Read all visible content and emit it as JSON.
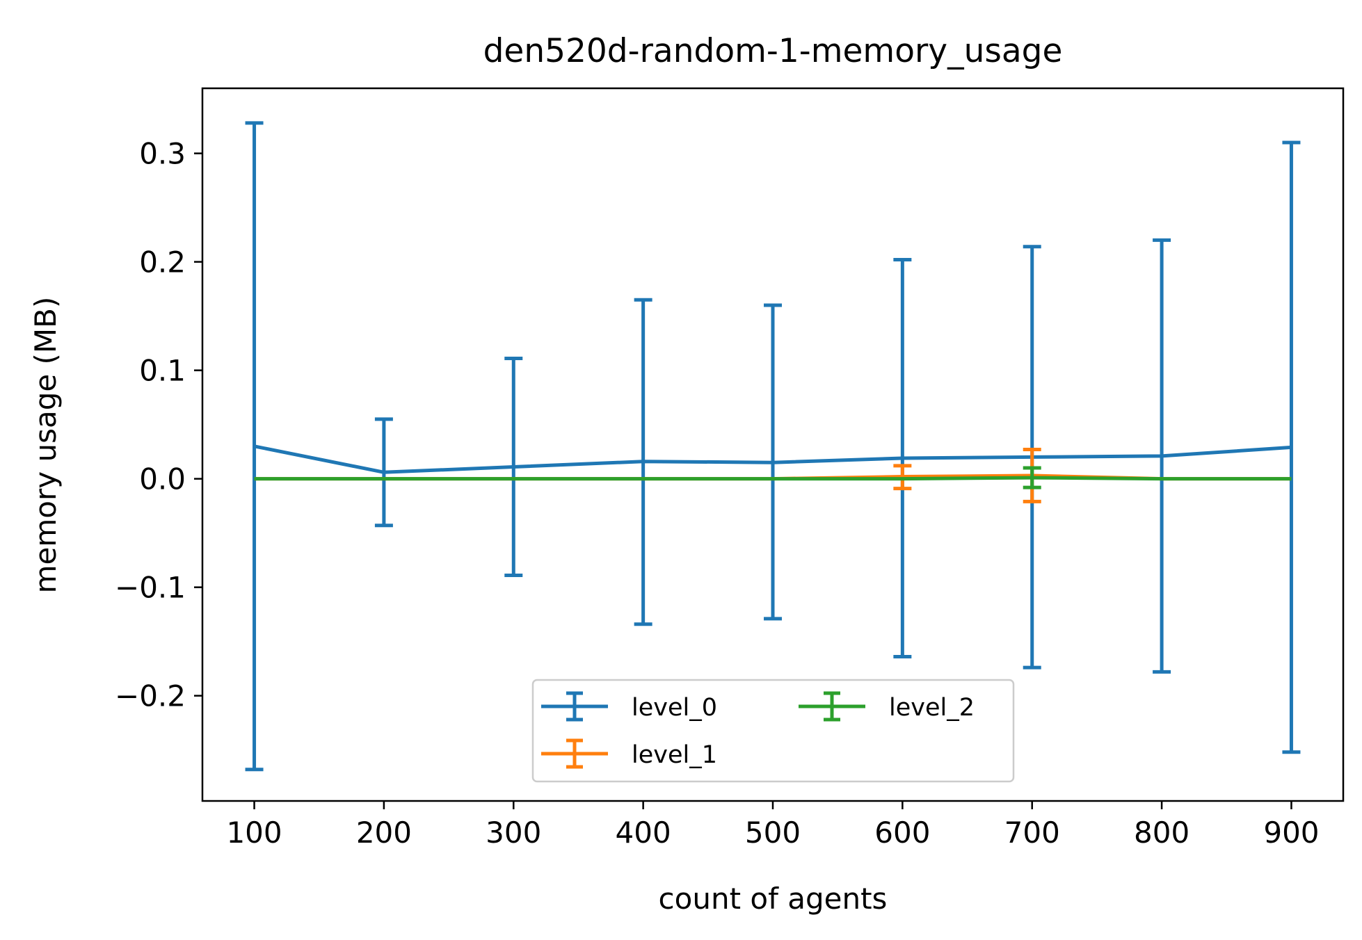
{
  "chart_data": {
    "type": "line",
    "title": "den520d-random-1-memory_usage",
    "xlabel": "count of agents",
    "ylabel": "memory usage (MB)",
    "xlim": [
      60,
      940
    ],
    "ylim": [
      -0.297,
      0.36
    ],
    "x": [
      100,
      200,
      300,
      400,
      500,
      600,
      700,
      800,
      900
    ],
    "x_ticks": [
      100,
      200,
      300,
      400,
      500,
      600,
      700,
      800,
      900
    ],
    "x_tick_labels": [
      "100",
      "200",
      "300",
      "400",
      "500",
      "600",
      "700",
      "800",
      "900"
    ],
    "y_ticks": [
      -0.2,
      -0.1,
      0.0,
      0.1,
      0.2,
      0.3
    ],
    "y_tick_labels": [
      "−0.2",
      "−0.1",
      "0.0",
      "0.1",
      "0.2",
      "0.3"
    ],
    "grid": false,
    "legend": {
      "placement": "lower center",
      "columns": 2
    },
    "series": [
      {
        "name": "level_0",
        "color": "#1f77b4",
        "values": [
          0.03,
          0.006,
          0.011,
          0.016,
          0.015,
          0.019,
          0.02,
          0.021,
          0.029
        ],
        "err_low": [
          -0.268,
          -0.043,
          -0.089,
          -0.134,
          -0.129,
          -0.164,
          -0.174,
          -0.178,
          -0.252
        ],
        "err_high": [
          0.328,
          0.055,
          0.111,
          0.165,
          0.16,
          0.202,
          0.214,
          0.22,
          0.31
        ]
      },
      {
        "name": "level_1",
        "color": "#ff7f0e",
        "values": [
          0.0,
          0.0,
          0.0,
          0.0,
          0.0,
          0.002,
          0.003,
          0.0,
          0.0
        ],
        "err_low": [
          0.0,
          0.0,
          0.0,
          0.0,
          0.0,
          -0.009,
          -0.021,
          0.0,
          0.0
        ],
        "err_high": [
          0.0,
          0.0,
          0.0,
          0.0,
          0.0,
          0.012,
          0.027,
          0.0,
          0.0
        ]
      },
      {
        "name": "level_2",
        "color": "#2ca02c",
        "values": [
          0.0,
          0.0,
          0.0,
          0.0,
          0.0,
          0.0,
          0.001,
          0.0,
          0.0
        ],
        "err_low": [
          0.0,
          0.0,
          0.0,
          0.0,
          0.0,
          0.0,
          -0.008,
          0.0,
          0.0
        ],
        "err_high": [
          0.0,
          0.0,
          0.0,
          0.0,
          0.0,
          0.0,
          0.01,
          0.0,
          0.0
        ]
      }
    ]
  }
}
